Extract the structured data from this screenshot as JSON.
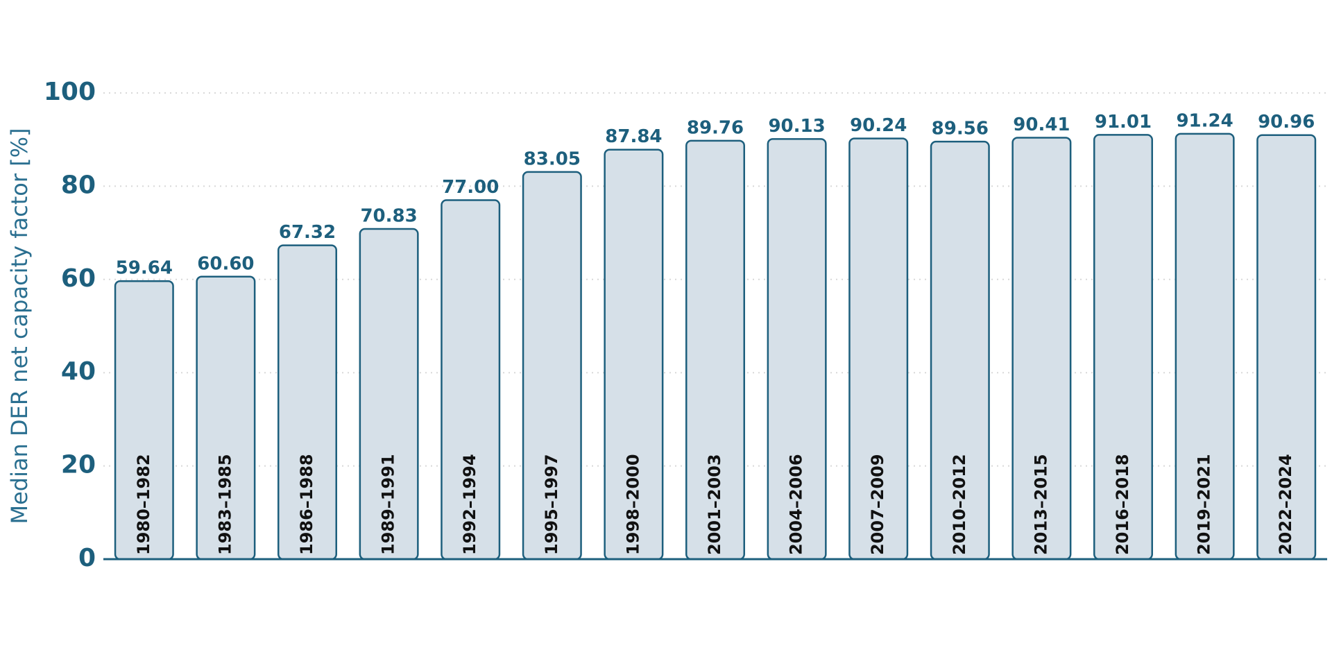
{
  "chart_data": {
    "type": "bar",
    "y_label": "Median DER net capacity factor [%]",
    "categories": [
      "1980–1982",
      "1983–1985",
      "1986–1988",
      "1989–1991",
      "1992–1994",
      "1995–1997",
      "1998–2000",
      "2001–2003",
      "2004–2006",
      "2007–2009",
      "2010–2012",
      "2013–2015",
      "2016–2018",
      "2019–2021",
      "2022–2024"
    ],
    "values": [
      59.64,
      60.6,
      67.32,
      70.83,
      77.0,
      83.05,
      87.84,
      89.76,
      90.13,
      90.24,
      89.56,
      90.41,
      91.01,
      91.24,
      90.96
    ],
    "value_labels": [
      "59.64",
      "60.60",
      "67.32",
      "70.83",
      "77.00",
      "83.05",
      "87.84",
      "89.76",
      "90.13",
      "90.24",
      "89.56",
      "90.41",
      "91.01",
      "91.24",
      "90.96"
    ],
    "color": "#d6e0e8",
    "edge_color": "#1d5f7d",
    "ylim": [
      0,
      100
    ],
    "yticks": [
      0,
      20,
      40,
      60,
      80,
      100
    ],
    "grid": true
  }
}
